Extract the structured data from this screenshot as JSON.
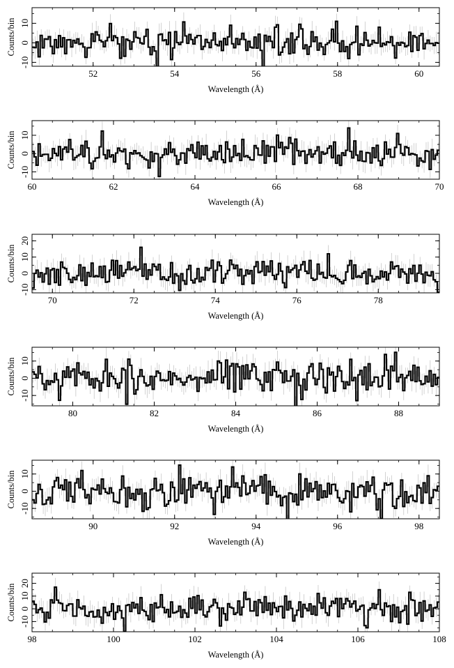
{
  "chart_data": [
    {
      "type": "line",
      "step": true,
      "xlim": [
        50.5,
        60.5
      ],
      "ylim": [
        -12,
        18
      ],
      "xticks": [
        52,
        54,
        56,
        58,
        60
      ],
      "yticks": [
        10,
        0,
        -10
      ],
      "xlabel": "Wavelength (Å)",
      "ylabel": "Counts/bin",
      "bin_width": 0.05,
      "seed": 11,
      "amplitude": 3.2,
      "error": 4.5,
      "peaks": [
        [
          55.4,
          9
        ],
        [
          57.95,
          11
        ],
        [
          56.45,
          8
        ],
        [
          59.0,
          8
        ]
      ]
    },
    {
      "type": "line",
      "step": true,
      "xlim": [
        60,
        70
      ],
      "ylim": [
        -14,
        18
      ],
      "xticks": [
        60,
        62,
        64,
        66,
        68,
        70
      ],
      "yticks": [
        10,
        0,
        -10
      ],
      "xlabel": "Wavelength (Å)",
      "ylabel": "Counts/bin",
      "bin_width": 0.05,
      "seed": 23,
      "amplitude": 3.4,
      "error": 5.0,
      "peaks": [
        [
          67.8,
          14
        ],
        [
          68.95,
          11
        ]
      ]
    },
    {
      "type": "line",
      "step": true,
      "xlim": [
        69.5,
        79.5
      ],
      "ylim": [
        -12,
        24
      ],
      "xticks": [
        70,
        72,
        74,
        76,
        78
      ],
      "yticks": [
        20,
        10,
        0,
        -10
      ],
      "xlabel": "Wavelength (Å)",
      "ylabel": "Counts/bin",
      "bin_width": 0.05,
      "seed": 37,
      "amplitude": 4.0,
      "error": 5.5,
      "peaks": [
        [
          72.15,
          16
        ],
        [
          76.75,
          12
        ]
      ]
    },
    {
      "type": "line",
      "step": true,
      "xlim": [
        79,
        89
      ],
      "ylim": [
        -16,
        18
      ],
      "xticks": [
        80,
        82,
        84,
        86,
        88
      ],
      "yticks": [
        10,
        0,
        -10
      ],
      "xlabel": "Wavelength (Å)",
      "ylabel": "Counts/bin",
      "bin_width": 0.05,
      "seed": 51,
      "amplitude": 4.5,
      "error": 5.5,
      "peaks": [
        [
          80.85,
          11
        ],
        [
          86.85,
          11
        ],
        [
          83.6,
          10
        ],
        [
          86.95,
          -13
        ]
      ]
    },
    {
      "type": "line",
      "step": true,
      "xlim": [
        88.5,
        98.5
      ],
      "ylim": [
        -16,
        18
      ],
      "xticks": [
        90,
        92,
        94,
        96,
        98
      ],
      "yticks": [
        10,
        0,
        -10
      ],
      "xlabel": "Wavelength (Å)",
      "ylabel": "Counts/bin",
      "bin_width": 0.05,
      "seed": 67,
      "amplitude": 4.5,
      "error": 5.5,
      "peaks": [
        [
          89.7,
          12
        ],
        [
          96.35,
          -12
        ]
      ]
    },
    {
      "type": "line",
      "step": true,
      "xlim": [
        98,
        108
      ],
      "ylim": [
        -18,
        28
      ],
      "xticks": [
        98,
        100,
        102,
        104,
        106,
        108
      ],
      "yticks": [
        20,
        10,
        0,
        -10
      ],
      "xlabel": "Wavelength (Å)",
      "ylabel": "Counts/bin",
      "bin_width": 0.05,
      "seed": 83,
      "amplitude": 5.0,
      "error": 7.0,
      "peaks": [
        [
          98.6,
          17
        ],
        [
          106.55,
          15
        ],
        [
          103.2,
          13
        ],
        [
          105.05,
          12
        ],
        [
          107.25,
          13
        ],
        [
          107.2,
          -12
        ]
      ]
    }
  ]
}
